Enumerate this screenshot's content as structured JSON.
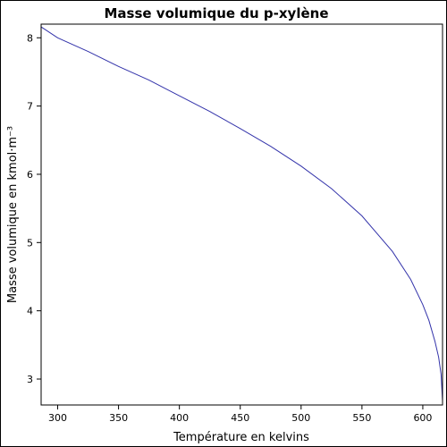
{
  "chart_data": {
    "type": "line",
    "title": "Masse volumique du p-xylène",
    "xlabel": "Température en kelvins",
    "ylabel": "Masse volumique en kmol·m⁻³",
    "xlim": [
      286.4,
      616.2
    ],
    "ylim": [
      2.62,
      8.2
    ],
    "x_ticks": [
      300,
      350,
      400,
      450,
      500,
      550,
      600
    ],
    "y_ticks": [
      3,
      4,
      5,
      6,
      7,
      8
    ],
    "grid": false,
    "legend": "none",
    "series": [
      {
        "color": "#3333aa",
        "x": [
          286.4,
          300,
          325,
          350,
          375,
          400,
          425,
          450,
          475,
          500,
          525,
          550,
          575,
          590,
          600,
          605,
          610,
          613,
          615,
          616.2
        ],
        "y": [
          8.16,
          8.0,
          7.8,
          7.58,
          7.38,
          7.15,
          6.92,
          6.67,
          6.41,
          6.12,
          5.79,
          5.39,
          4.87,
          4.46,
          4.09,
          3.86,
          3.55,
          3.32,
          3.07,
          2.68
        ]
      }
    ]
  }
}
